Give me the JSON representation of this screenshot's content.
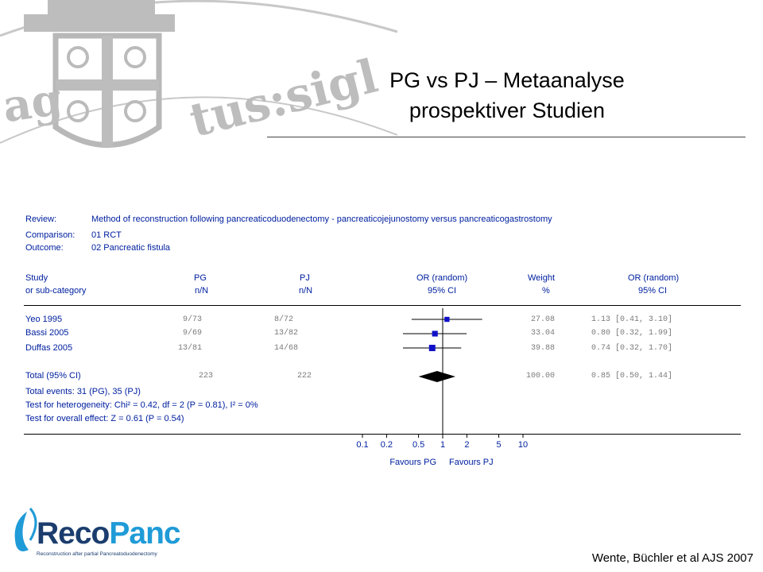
{
  "slide": {
    "title_line1": "PG vs PJ – Metaanalyse",
    "title_line2": "prospektiver  Studien",
    "citation": "Wente, Büchler et al AJS 2007"
  },
  "logo": {
    "word_a": "Reco",
    "word_b": "Panc",
    "tagline": "Reconstruction after partial Pancreatoduodenectomy",
    "color_dark": "#1b3d6e",
    "color_accent": "#1f9bd7"
  },
  "meta": {
    "review_label": "Review:",
    "review_value": "Method of reconstruction following pancreaticoduodenectomy - pancreaticojejunostomy versus pancreaticogastrostomy",
    "comparison_label": "Comparison:",
    "comparison_value": "01 RCT",
    "outcome_label": "Outcome:",
    "outcome_value": "02 Pancreatic fistula"
  },
  "headers": {
    "study": [
      "Study",
      "or sub-category"
    ],
    "pg": [
      "PG",
      "n/N"
    ],
    "pj": [
      "PJ",
      "n/N"
    ],
    "or_plot": [
      "OR (random)",
      "95% CI"
    ],
    "weight": [
      "Weight",
      "%"
    ],
    "or_text": [
      "OR (random)",
      "95% CI"
    ]
  },
  "chart_data": {
    "type": "forest",
    "scale": "log",
    "x_ticks": [
      0.1,
      0.2,
      0.5,
      1,
      2,
      5,
      10
    ],
    "x_tick_labels": [
      "0.1",
      "0.2",
      "0.5",
      "1",
      "2",
      "5",
      "10"
    ],
    "favours_left": "Favours PG",
    "favours_right": "Favours PJ",
    "studies": [
      {
        "name": "Yeo 1995",
        "pg": "9/73",
        "pj": "8/72",
        "or": 1.13,
        "lo": 0.41,
        "hi": 3.1,
        "weight": "27.08",
        "ci_text": "1.13 [0.41, 3.10]"
      },
      {
        "name": "Bassi 2005",
        "pg": "9/69",
        "pj": "13/82",
        "or": 0.8,
        "lo": 0.32,
        "hi": 1.99,
        "weight": "33.04",
        "ci_text": "0.80 [0.32, 1.99]"
      },
      {
        "name": "Duffas 2005",
        "pg": "13/81",
        "pj": "14/68",
        "or": 0.74,
        "lo": 0.32,
        "hi": 1.7,
        "weight": "39.88",
        "ci_text": "0.74 [0.32, 1.70]"
      }
    ],
    "total": {
      "label": "Total (95% CI)",
      "pg": "223",
      "pj": "222",
      "or": 0.85,
      "lo": 0.5,
      "hi": 1.44,
      "weight": "100.00",
      "ci_text": "0.85 [0.50, 1.44]"
    },
    "notes": [
      "Total events: 31 (PG), 35 (PJ)",
      "Test for heterogeneity: Chi² = 0.42, df = 2 (P = 0.81), I² = 0%",
      "Test for overall effect: Z = 0.61 (P = 0.54)"
    ],
    "marker_color": "#1010c8"
  }
}
